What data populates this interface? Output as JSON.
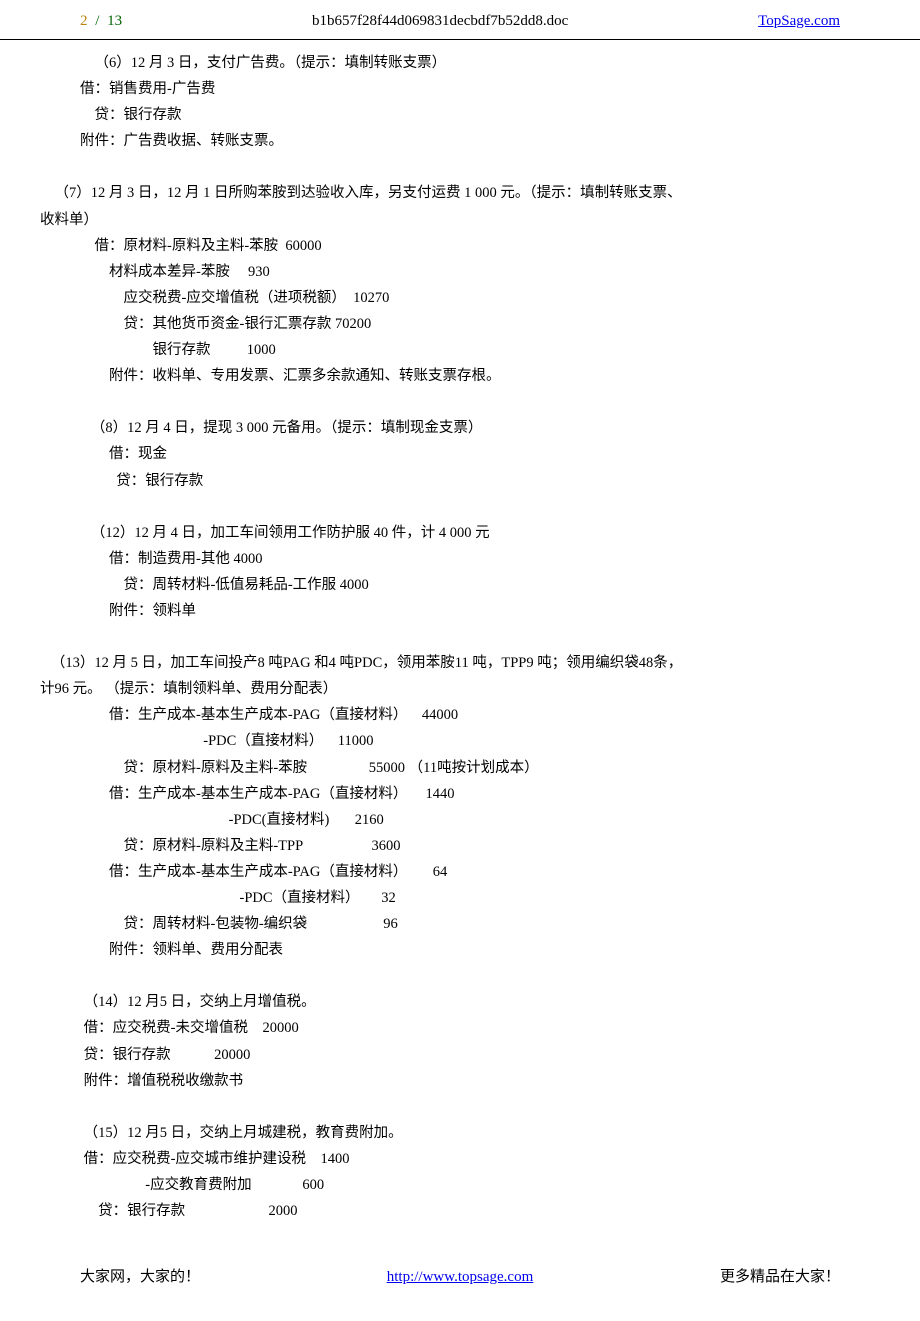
{
  "header": {
    "page_current": "2",
    "page_separator": "/",
    "page_total": "13",
    "filename": "b1b657f28f44d069831decbdf7b52dd8.doc",
    "site": "TopSage.com"
  },
  "lines": [
    "    （6）12 月 3 日，支付广告费。（提示：填制转账支票）",
    "借：销售费用-广告费",
    "    贷：银行存款",
    "附件：广告费收据、转账支票。",
    "",
    "    （7）12 月 3 日，12 月 1 日所购苯胺到达验收入库，另支付运费 1 000 元。（提示：填制转账支票、",
    "收料单）",
    "    借：原材料-原料及主料-苯胺  60000",
    "        材料成本差异-苯胺     930",
    "            应交税费-应交增值税（进项税额）  10270",
    "            贷：其他货币资金-银行汇票存款 70200",
    "                    银行存款          1000",
    "        附件：收料单、专用发票、汇票多余款通知、转账支票存根。",
    "",
    "   （8）12 月 4 日，提现 3 000 元备用。（提示：填制现金支票）",
    "        借：现金",
    "          贷：银行存款",
    "",
    "   （12）12 月 4 日，加工车间领用工作防护服 40 件，计 4 000 元",
    "        借：制造费用-其他 4000",
    "            贷：周转材料-低值易耗品-工作服 4000",
    "        附件：领料单",
    "",
    "   （13）12 月 5 日，加工车间投产8 吨PAG 和4 吨PDC，领用苯胺11 吨，TPP9 吨；领用编织袋48条，",
    "计96 元。 （提示：填制领料单、费用分配表）",
    "        借：生产成本-基本生产成本-PAG（直接材料）    44000",
    "                                  -PDC（直接材料）    11000",
    "            贷：原材料-原料及主料-苯胺                 55000 （11吨按计划成本）",
    "        借：生产成本-基本生产成本-PAG（直接材料）     1440",
    "                                         -PDC(直接材料)       2160",
    "            贷：原材料-原料及主料-TPP                   3600",
    "        借：生产成本-基本生产成本-PAG（直接材料）       64",
    "                                            -PDC（直接材料）      32",
    "            贷：周转材料-包装物-编织袋                     96",
    "        附件：领料单、费用分配表",
    "",
    " （14）12 月5 日，交纳上月增值税。",
    " 借：应交税费-未交增值税    20000",
    " 贷：银行存款            20000",
    " 附件：增值税税收缴款书",
    "",
    " （15）12 月5 日，交纳上月城建税，教育费附加。",
    " 借：应交税费-应交城市维护建设税    1400",
    "                  -应交教育费附加              600",
    "     贷：银行存款                       2000"
  ],
  "footer": {
    "left": "大家网，大家的！",
    "link": "http://www.topsage.com",
    "right": "更多精品在大家！"
  },
  "colors": {
    "page_num": "#b8860b",
    "page_green": "#006400",
    "link": "#0000ee",
    "text": "#000000",
    "background": "#ffffff",
    "border": "#000000"
  },
  "typography": {
    "body_fontsize": 14.5,
    "header_fontsize": 15,
    "footer_fontsize": 15,
    "line_height": 1.8,
    "font_family": "SimSun"
  }
}
